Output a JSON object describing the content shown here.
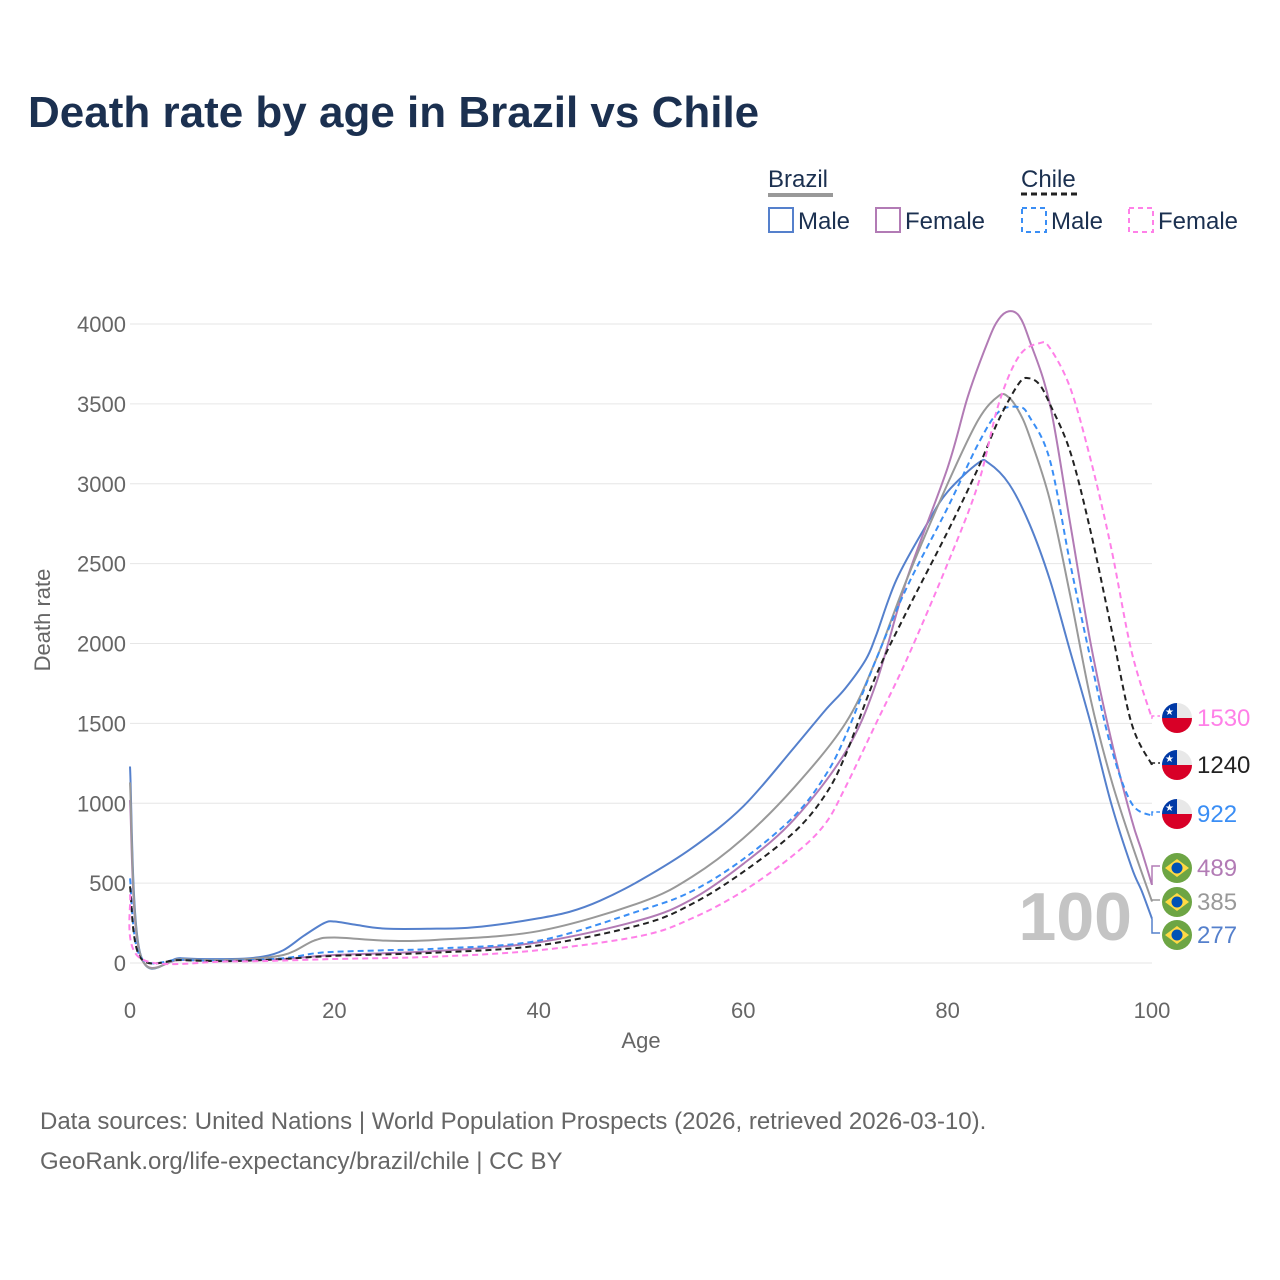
{
  "chart_data": {
    "type": "line",
    "title": "Death rate by age in Brazil vs Chile",
    "xlabel": "Age",
    "ylabel": "Death rate",
    "xlim": [
      0,
      100
    ],
    "ylim": [
      0,
      4000
    ],
    "xticks": [
      "0",
      "20",
      "40",
      "60",
      "80",
      "100"
    ],
    "yticks": [
      "0",
      "500",
      "1000",
      "1500",
      "2000",
      "2500",
      "3000",
      "3500",
      "4000"
    ],
    "grid": true,
    "year_watermark": "100",
    "legend": {
      "placement": "top-right",
      "groups": [
        {
          "label": "Brazil",
          "items": [
            "Male",
            "Female"
          ]
        },
        {
          "label": "Chile",
          "items": [
            "Male",
            "Female"
          ]
        }
      ]
    },
    "series": [
      {
        "name": "Brazil Male",
        "country": "brazil",
        "color": "#5580cc",
        "dash": false,
        "end_label": "277",
        "points": [
          [
            0,
            1230
          ],
          [
            1,
            60
          ],
          [
            5,
            30
          ],
          [
            10,
            25
          ],
          [
            13,
            40
          ],
          [
            15,
            80
          ],
          [
            17,
            170
          ],
          [
            19,
            250
          ],
          [
            20,
            260
          ],
          [
            22,
            240
          ],
          [
            25,
            215
          ],
          [
            30,
            215
          ],
          [
            33,
            220
          ],
          [
            36,
            240
          ],
          [
            40,
            280
          ],
          [
            43,
            320
          ],
          [
            46,
            390
          ],
          [
            50,
            520
          ],
          [
            55,
            720
          ],
          [
            60,
            980
          ],
          [
            65,
            1350
          ],
          [
            68,
            1580
          ],
          [
            70,
            1720
          ],
          [
            72,
            1900
          ],
          [
            73,
            2050
          ],
          [
            75,
            2400
          ],
          [
            78,
            2750
          ],
          [
            80,
            2950
          ],
          [
            83,
            3130
          ],
          [
            84,
            3130
          ],
          [
            86,
            3000
          ],
          [
            88,
            2750
          ],
          [
            90,
            2400
          ],
          [
            92,
            1950
          ],
          [
            94,
            1500
          ],
          [
            96,
            1000
          ],
          [
            98,
            600
          ],
          [
            99,
            450
          ],
          [
            100,
            277
          ]
        ]
      },
      {
        "name": "Brazil Female",
        "country": "brazil",
        "color": "#b27bb5",
        "dash": false,
        "end_label": "489",
        "points": [
          [
            0,
            1020
          ],
          [
            1,
            50
          ],
          [
            5,
            20
          ],
          [
            10,
            15
          ],
          [
            15,
            25
          ],
          [
            20,
            50
          ],
          [
            30,
            75
          ],
          [
            40,
            130
          ],
          [
            50,
            270
          ],
          [
            55,
            400
          ],
          [
            60,
            620
          ],
          [
            65,
            900
          ],
          [
            70,
            1320
          ],
          [
            73,
            1750
          ],
          [
            76,
            2400
          ],
          [
            80,
            3100
          ],
          [
            82,
            3550
          ],
          [
            84,
            3900
          ],
          [
            85,
            4030
          ],
          [
            86,
            4080
          ],
          [
            87,
            4050
          ],
          [
            88,
            3900
          ],
          [
            90,
            3500
          ],
          [
            92,
            2750
          ],
          [
            94,
            2000
          ],
          [
            96,
            1400
          ],
          [
            98,
            900
          ],
          [
            99,
            700
          ],
          [
            100,
            489
          ]
        ]
      },
      {
        "name": "Brazil Total",
        "country": "brazil",
        "color": "#999999",
        "dash": false,
        "end_label": "385",
        "points": [
          [
            0,
            1130
          ],
          [
            1,
            55
          ],
          [
            5,
            25
          ],
          [
            10,
            20
          ],
          [
            15,
            50
          ],
          [
            18,
            140
          ],
          [
            20,
            160
          ],
          [
            25,
            140
          ],
          [
            30,
            145
          ],
          [
            40,
            200
          ],
          [
            50,
            380
          ],
          [
            55,
            540
          ],
          [
            60,
            780
          ],
          [
            65,
            1100
          ],
          [
            70,
            1500
          ],
          [
            73,
            1900
          ],
          [
            76,
            2400
          ],
          [
            80,
            3000
          ],
          [
            83,
            3400
          ],
          [
            85,
            3550
          ],
          [
            86,
            3540
          ],
          [
            87,
            3450
          ],
          [
            88,
            3300
          ],
          [
            90,
            2900
          ],
          [
            92,
            2300
          ],
          [
            94,
            1650
          ],
          [
            96,
            1150
          ],
          [
            98,
            750
          ],
          [
            100,
            385
          ]
        ]
      },
      {
        "name": "Chile Male",
        "country": "chile",
        "color": "#3a8ef5",
        "dash": true,
        "end_label": "922",
        "points": [
          [
            0,
            530
          ],
          [
            1,
            40
          ],
          [
            5,
            20
          ],
          [
            10,
            15
          ],
          [
            15,
            30
          ],
          [
            18,
            60
          ],
          [
            20,
            70
          ],
          [
            25,
            80
          ],
          [
            30,
            90
          ],
          [
            40,
            140
          ],
          [
            50,
            330
          ],
          [
            55,
            450
          ],
          [
            60,
            650
          ],
          [
            65,
            920
          ],
          [
            68,
            1170
          ],
          [
            70,
            1420
          ],
          [
            73,
            1900
          ],
          [
            76,
            2350
          ],
          [
            80,
            2850
          ],
          [
            83,
            3250
          ],
          [
            85,
            3450
          ],
          [
            87,
            3480
          ],
          [
            88,
            3420
          ],
          [
            90,
            3150
          ],
          [
            92,
            2500
          ],
          [
            94,
            1900
          ],
          [
            96,
            1350
          ],
          [
            98,
            1000
          ],
          [
            100,
            922
          ]
        ]
      },
      {
        "name": "Chile Total",
        "country": "chile",
        "color": "#222222",
        "dash": true,
        "end_label": "1240",
        "points": [
          [
            0,
            480
          ],
          [
            1,
            35
          ],
          [
            5,
            18
          ],
          [
            10,
            12
          ],
          [
            15,
            25
          ],
          [
            20,
            45
          ],
          [
            30,
            65
          ],
          [
            40,
            110
          ],
          [
            50,
            240
          ],
          [
            55,
            370
          ],
          [
            60,
            570
          ],
          [
            65,
            820
          ],
          [
            68,
            1050
          ],
          [
            70,
            1300
          ],
          [
            73,
            1800
          ],
          [
            76,
            2200
          ],
          [
            80,
            2700
          ],
          [
            83,
            3100
          ],
          [
            85,
            3400
          ],
          [
            87,
            3630
          ],
          [
            88,
            3660
          ],
          [
            89,
            3620
          ],
          [
            90,
            3500
          ],
          [
            92,
            3200
          ],
          [
            94,
            2700
          ],
          [
            96,
            2100
          ],
          [
            98,
            1500
          ],
          [
            100,
            1240
          ]
        ]
      },
      {
        "name": "Chile Female",
        "country": "chile",
        "color": "#ff80e8",
        "dash": true,
        "end_label": "1530",
        "points": [
          [
            0,
            430
          ],
          [
            1,
            30
          ],
          [
            10,
            10
          ],
          [
            20,
            25
          ],
          [
            30,
            40
          ],
          [
            40,
            80
          ],
          [
            50,
            170
          ],
          [
            55,
            280
          ],
          [
            60,
            450
          ],
          [
            65,
            680
          ],
          [
            68,
            870
          ],
          [
            70,
            1100
          ],
          [
            73,
            1500
          ],
          [
            76,
            1900
          ],
          [
            80,
            2500
          ],
          [
            83,
            3000
          ],
          [
            85,
            3500
          ],
          [
            87,
            3800
          ],
          [
            89,
            3880
          ],
          [
            90,
            3850
          ],
          [
            92,
            3600
          ],
          [
            94,
            3150
          ],
          [
            96,
            2600
          ],
          [
            98,
            1950
          ],
          [
            100,
            1530
          ]
        ]
      }
    ]
  },
  "source_line1": "Data sources: United Nations | World Population Prospects (2026, retrieved 2026-03-10).",
  "source_line2": "GeoRank.org/life-expectancy/brazil/chile | CC BY"
}
